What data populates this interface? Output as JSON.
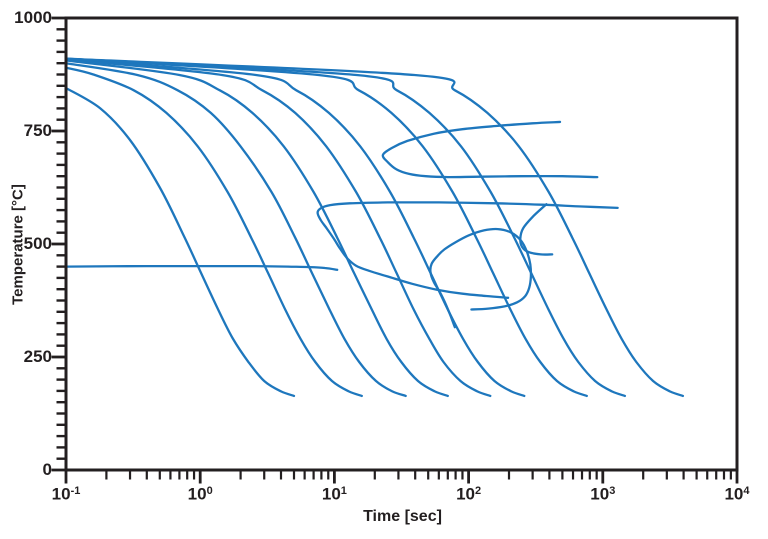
{
  "figure": {
    "background": "#ffffff",
    "curve_color": "#1e77bd",
    "axis_color": "#231f20"
  },
  "axes": {
    "x": {
      "label": "Time [sec]",
      "scale": "log",
      "base": "10",
      "tick_exponents": [
        -1,
        0,
        1,
        2,
        3,
        4
      ],
      "minor_mantissas": [
        2,
        3,
        4,
        5,
        6,
        7,
        8,
        9
      ]
    },
    "y": {
      "label": "Temperature [°C]",
      "min": 0,
      "max": 1000,
      "major_tick_values": [
        1000,
        750,
        500,
        250,
        0
      ],
      "minor_step": 25
    }
  },
  "chart_data": {
    "type": "line",
    "title": "",
    "xlabel": "Time [sec]",
    "ylabel": "Temperature [°C]",
    "x_range_sec": [
      0.1,
      10000
    ],
    "y_range_c": [
      0,
      1000
    ],
    "grid": false,
    "legend": false,
    "series": [
      {
        "name": "cooling-curve-1",
        "role": "cooling-curve",
        "points": [
          [
            0.1,
            845
          ],
          [
            0.18,
            800
          ],
          [
            0.3,
            730
          ],
          [
            0.5,
            625
          ],
          [
            0.75,
            520
          ],
          [
            1.0,
            440
          ],
          [
            1.35,
            357
          ],
          [
            1.75,
            291
          ],
          [
            2.3,
            238
          ],
          [
            3.0,
            197
          ],
          [
            4.0,
            174
          ],
          [
            5.0,
            164
          ]
        ]
      },
      {
        "name": "cooling-curve-2",
        "role": "cooling-curve",
        "points": [
          [
            0.1,
            890
          ],
          [
            0.16,
            875
          ],
          [
            0.32,
            840
          ],
          [
            0.56,
            790
          ],
          [
            0.96,
            716
          ],
          [
            1.6,
            615
          ],
          [
            2.4,
            514
          ],
          [
            3.2,
            436
          ],
          [
            4.3,
            355
          ],
          [
            5.6,
            290
          ],
          [
            7.2,
            239
          ],
          [
            9.6,
            197
          ],
          [
            12.8,
            174
          ],
          [
            16,
            164
          ]
        ]
      },
      {
        "name": "cooling-curve-3",
        "role": "cooling-curve",
        "points": [
          [
            0.1,
            900
          ],
          [
            0.34,
            874
          ],
          [
            0.68,
            840
          ],
          [
            1.2,
            790
          ],
          [
            2.0,
            716
          ],
          [
            3.4,
            615
          ],
          [
            5.1,
            514
          ],
          [
            6.8,
            436
          ],
          [
            9.2,
            355
          ],
          [
            11.9,
            290
          ],
          [
            15.3,
            239
          ],
          [
            20.4,
            197
          ],
          [
            27,
            174
          ],
          [
            34,
            164
          ]
        ]
      },
      {
        "name": "cooling-curve-4",
        "role": "cooling-curve",
        "points": [
          [
            0.1,
            906
          ],
          [
            0.7,
            874
          ],
          [
            1.4,
            840
          ],
          [
            2.45,
            790
          ],
          [
            4.2,
            716
          ],
          [
            7.0,
            615
          ],
          [
            10.5,
            514
          ],
          [
            14,
            436
          ],
          [
            19,
            355
          ],
          [
            24.5,
            290
          ],
          [
            31.5,
            239
          ],
          [
            42,
            197
          ],
          [
            56,
            174
          ],
          [
            70,
            164
          ]
        ]
      },
      {
        "name": "cooling-curve-5",
        "role": "cooling-curve",
        "points": [
          [
            0.1,
            908
          ],
          [
            1.45,
            874
          ],
          [
            2.9,
            840
          ],
          [
            5.1,
            790
          ],
          [
            8.7,
            716
          ],
          [
            14.5,
            615
          ],
          [
            21.8,
            514
          ],
          [
            29,
            436
          ],
          [
            39,
            355
          ],
          [
            51,
            290
          ],
          [
            65,
            239
          ],
          [
            87,
            197
          ],
          [
            116,
            174
          ],
          [
            145,
            164
          ]
        ]
      },
      {
        "name": "cooling-curve-6",
        "role": "cooling-curve",
        "points": [
          [
            0.1,
            909
          ],
          [
            2.6,
            874
          ],
          [
            5.2,
            840
          ],
          [
            9.1,
            790
          ],
          [
            15.6,
            716
          ],
          [
            26,
            615
          ],
          [
            39,
            514
          ],
          [
            52,
            436
          ],
          [
            70,
            355
          ],
          [
            91,
            290
          ],
          [
            117,
            239
          ],
          [
            156,
            197
          ],
          [
            208,
            174
          ],
          [
            260,
            164
          ]
        ]
      },
      {
        "name": "cooling-curve-7",
        "role": "cooling-curve",
        "points": [
          [
            0.1,
            910
          ],
          [
            7.6,
            874
          ],
          [
            15.2,
            840
          ],
          [
            26.6,
            790
          ],
          [
            45.6,
            716
          ],
          [
            76,
            615
          ],
          [
            114,
            514
          ],
          [
            152,
            436
          ],
          [
            205,
            355
          ],
          [
            266,
            290
          ],
          [
            342,
            239
          ],
          [
            456,
            197
          ],
          [
            608,
            174
          ],
          [
            760,
            164
          ]
        ]
      },
      {
        "name": "cooling-curve-8",
        "role": "cooling-curve",
        "points": [
          [
            0.1,
            910
          ],
          [
            14.6,
            874
          ],
          [
            29.2,
            840
          ],
          [
            51,
            790
          ],
          [
            88,
            716
          ],
          [
            146,
            615
          ],
          [
            219,
            514
          ],
          [
            292,
            436
          ],
          [
            394,
            355
          ],
          [
            511,
            290
          ],
          [
            657,
            239
          ],
          [
            876,
            197
          ],
          [
            1168,
            174
          ],
          [
            1460,
            164
          ]
        ]
      },
      {
        "name": "cooling-curve-9",
        "role": "cooling-curve",
        "points": [
          [
            0.1,
            910
          ],
          [
            39.5,
            874
          ],
          [
            79,
            840
          ],
          [
            138,
            790
          ],
          [
            237,
            716
          ],
          [
            395,
            615
          ],
          [
            593,
            514
          ],
          [
            790,
            436
          ],
          [
            1067,
            355
          ],
          [
            1383,
            290
          ],
          [
            1778,
            239
          ],
          [
            2370,
            197
          ],
          [
            3160,
            174
          ],
          [
            3950,
            164
          ]
        ]
      },
      {
        "name": "ferrite-start-curve",
        "role": "transformation-curve",
        "points": [
          [
            480,
            770
          ],
          [
            300,
            767
          ],
          [
            160,
            761
          ],
          [
            90,
            754
          ],
          [
            55,
            744
          ],
          [
            35,
            728
          ],
          [
            27,
            713
          ],
          [
            23,
            697
          ],
          [
            25,
            681
          ],
          [
            29,
            665
          ],
          [
            36,
            655
          ],
          [
            48,
            650
          ],
          [
            70,
            648
          ],
          [
            120,
            649
          ],
          [
            250,
            650
          ],
          [
            500,
            650
          ],
          [
            910,
            648
          ]
        ]
      },
      {
        "name": "pearlite-start-curve",
        "role": "transformation-curve",
        "points": [
          [
            1290,
            580
          ],
          [
            700,
            583
          ],
          [
            350,
            587
          ],
          [
            160,
            590
          ],
          [
            60,
            592
          ],
          [
            25,
            592
          ],
          [
            13,
            590
          ],
          [
            9.3,
            586
          ],
          [
            7.9,
            579
          ],
          [
            7.5,
            569
          ],
          [
            7.9,
            553
          ],
          [
            8.8,
            534
          ],
          [
            9.9,
            512
          ],
          [
            11,
            490
          ],
          [
            12.5,
            468
          ],
          [
            14.5,
            452
          ],
          [
            18,
            441
          ],
          [
            25,
            428
          ],
          [
            38,
            412
          ],
          [
            58,
            399
          ],
          [
            90,
            390
          ],
          [
            135,
            385
          ],
          [
            197,
            381
          ]
        ]
      },
      {
        "name": "bainite-start-line",
        "role": "transformation-curve",
        "points": [
          [
            0.1,
            450
          ],
          [
            0.4,
            451
          ],
          [
            1.2,
            451
          ],
          [
            2.6,
            451
          ],
          [
            4.5,
            450
          ],
          [
            6.5,
            449
          ],
          [
            8.5,
            447
          ],
          [
            10.5,
            443
          ]
        ]
      },
      {
        "name": "bainite-region-boundary",
        "role": "transformation-curve",
        "points": [
          [
            79,
            316
          ],
          [
            71,
            352
          ],
          [
            62,
            390
          ],
          [
            55,
            416
          ],
          [
            52,
            438
          ],
          [
            53,
            456
          ],
          [
            58,
            472
          ],
          [
            66,
            488
          ],
          [
            80,
            504
          ],
          [
            100,
            519
          ],
          [
            130,
            530
          ],
          [
            165,
            533
          ],
          [
            205,
            526
          ],
          [
            245,
            508
          ],
          [
            272,
            483
          ],
          [
            288,
            455
          ],
          [
            291,
            428
          ],
          [
            283,
            403
          ],
          [
            263,
            384
          ],
          [
            230,
            371
          ],
          [
            185,
            362
          ],
          [
            140,
            357
          ],
          [
            105,
            355
          ]
        ]
      },
      {
        "name": "pearlite-region-boundary",
        "role": "transformation-curve",
        "points": [
          [
            380,
            588
          ],
          [
            300,
            560
          ],
          [
            255,
            535
          ],
          [
            243,
            512
          ],
          [
            250,
            494
          ],
          [
            280,
            482
          ],
          [
            345,
            477
          ],
          [
            420,
            477
          ]
        ]
      }
    ]
  }
}
